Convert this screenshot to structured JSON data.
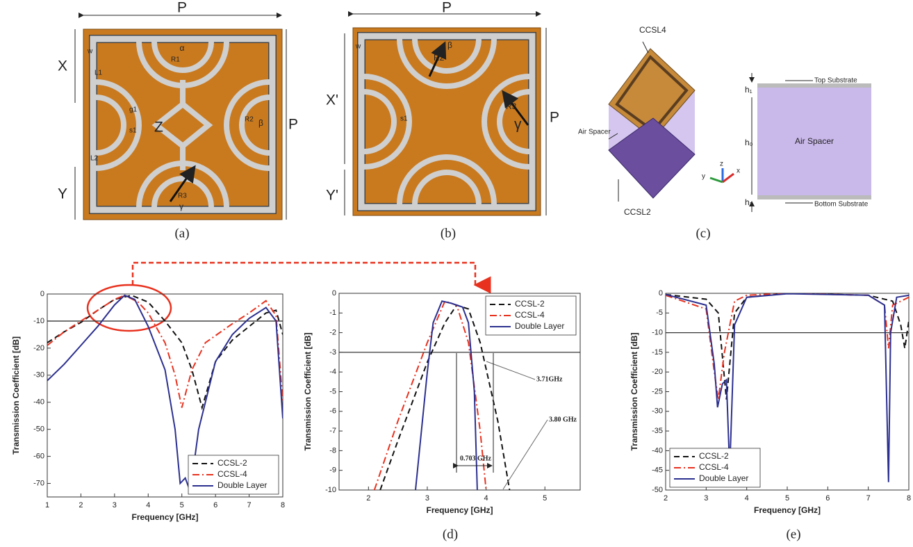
{
  "figure": {
    "panel_labels": [
      "(a)",
      "(b)",
      "(c)",
      "(d)",
      "(e)"
    ],
    "a": {
      "labels": [
        "P",
        "X",
        "Y",
        "P",
        "α",
        "R1",
        "R2",
        "β",
        "R3",
        "γ",
        "Z",
        "w",
        "L1",
        "L2",
        "g1",
        "s1"
      ]
    },
    "b": {
      "labels": [
        "P",
        "X'",
        "Y'",
        "P",
        "β",
        "R2",
        "R3",
        "γ",
        "w",
        "s1"
      ]
    },
    "c": {
      "labels": [
        "CCSL4",
        "CCSL2",
        "Air Spacer",
        "h₁",
        "h₀",
        "h₁",
        "Top Substrate",
        "Bottom Substrate",
        "Air Spacer",
        "x",
        "y",
        "z"
      ]
    }
  },
  "chart_data": [
    {
      "type": "line",
      "xlabel": "Frequency [GHz]",
      "ylabel": "Transmission Coefficient [dB]",
      "xlim": [
        1,
        8
      ],
      "ylim": [
        -75,
        0
      ],
      "xticks": [
        1,
        2,
        3,
        4,
        5,
        6,
        7,
        8
      ],
      "yticks": [
        0,
        -10,
        -20,
        -30,
        -40,
        -50,
        -60,
        -70
      ],
      "hline": -10,
      "legend": "lower right",
      "series": [
        {
          "name": "CCSL-2",
          "color": "#111111",
          "dash": "dashed",
          "x": [
            1,
            1.5,
            2,
            2.5,
            3,
            3.5,
            4,
            4.5,
            5,
            5.3,
            5.6,
            6,
            6.5,
            7,
            7.5,
            7.8,
            8
          ],
          "values": [
            -18,
            -14,
            -10.5,
            -6,
            -2,
            -0.5,
            -3,
            -10,
            -18,
            -28,
            -42,
            -25,
            -17,
            -12,
            -7,
            -6,
            -15
          ]
        },
        {
          "name": "CCSL-4",
          "color": "#e8311e",
          "dash": "dashdot",
          "x": [
            1,
            1.5,
            2,
            2.5,
            3,
            3.3,
            3.7,
            4,
            4.5,
            4.8,
            5,
            5.3,
            5.7,
            6.5,
            7,
            7.5,
            7.8,
            8
          ],
          "values": [
            -19,
            -14,
            -10,
            -6,
            -2,
            -0.5,
            -3,
            -7,
            -18,
            -30,
            -42,
            -28,
            -18,
            -11,
            -7,
            -2.5,
            -8,
            -40
          ]
        },
        {
          "name": "Double Layer",
          "color": "#2b2f8f",
          "dash": "solid",
          "x": [
            1,
            1.5,
            2,
            2.5,
            3,
            3.3,
            3.6,
            4,
            4.5,
            4.8,
            4.95,
            5.1,
            5.25,
            5.5,
            6,
            6.5,
            7,
            7.5,
            7.8,
            8
          ],
          "values": [
            -32,
            -26,
            -19,
            -12,
            -4,
            -0.5,
            -2,
            -12,
            -28,
            -50,
            -70,
            -68,
            -73,
            -50,
            -25,
            -15,
            -9,
            -5,
            -10,
            -46
          ]
        }
      ]
    },
    {
      "type": "line",
      "xlabel": "Frequency [GHz]",
      "ylabel": "Transmission Coefficient [dB]",
      "xlim": [
        1.5,
        5.6
      ],
      "ylim": [
        -10,
        0
      ],
      "xticks": [
        2,
        3,
        4,
        5
      ],
      "yticks": [
        0,
        -1,
        -2,
        -3,
        -4,
        -5,
        -6,
        -7,
        -8,
        -9,
        -10
      ],
      "hline": -3,
      "legend": "upper right",
      "annotations": [
        "3.71GHz",
        "3.80 GHz",
        "0.703 GHz"
      ],
      "series": [
        {
          "name": "CCSL-2",
          "color": "#111111",
          "dash": "dashed",
          "x": [
            2.2,
            2.5,
            3,
            3.3,
            3.5,
            3.7,
            3.9,
            4.2,
            4.4
          ],
          "values": [
            -10,
            -7.5,
            -3.5,
            -1.5,
            -0.6,
            -0.8,
            -2.5,
            -6.5,
            -10
          ]
        },
        {
          "name": "CCSL-4",
          "color": "#e8311e",
          "dash": "dashdot",
          "x": [
            2.1,
            2.5,
            3,
            3.3,
            3.5,
            3.7,
            3.9,
            4.0
          ],
          "values": [
            -10,
            -6.5,
            -2.5,
            -0.4,
            -0.6,
            -2.5,
            -7,
            -10
          ]
        },
        {
          "name": "Double Layer",
          "color": "#2b2f8f",
          "dash": "solid",
          "x": [
            2.8,
            3.0,
            3.1,
            3.25,
            3.4,
            3.5,
            3.6,
            3.7,
            3.8,
            3.85
          ],
          "values": [
            -10,
            -4,
            -1.5,
            -0.4,
            -0.5,
            -0.6,
            -0.7,
            -1.5,
            -5,
            -10
          ]
        }
      ]
    },
    {
      "type": "line",
      "xlabel": "Frequency [GHz]",
      "ylabel": "Transmission Coefficient [dB]",
      "xlim": [
        2,
        8
      ],
      "ylim": [
        -50,
        0
      ],
      "xticks": [
        2,
        3,
        4,
        5,
        6,
        7,
        8
      ],
      "yticks": [
        0,
        -5,
        -10,
        -15,
        -20,
        -25,
        -30,
        -35,
        -40,
        -45,
        -50
      ],
      "hline": -10,
      "legend": "lower left",
      "series": [
        {
          "name": "CCSL-2",
          "color": "#111111",
          "dash": "dashed",
          "x": [
            2,
            3,
            3.3,
            3.5,
            3.7,
            4,
            5,
            7,
            7.6,
            7.8,
            7.9,
            8
          ],
          "values": [
            -0.3,
            -1.5,
            -5,
            -27,
            -5,
            -1,
            0,
            -0.5,
            -2,
            -8,
            -14,
            -7
          ]
        },
        {
          "name": "CCSL-4",
          "color": "#e8311e",
          "dash": "dashdot",
          "x": [
            2,
            3,
            3.2,
            3.3,
            3.45,
            3.7,
            4,
            5,
            7,
            7.4,
            7.5,
            7.6,
            8
          ],
          "values": [
            -0.5,
            -4,
            -20,
            -27,
            -15,
            -2,
            -0.5,
            0,
            -0.5,
            -3,
            -14,
            -3,
            -1
          ]
        },
        {
          "name": "Double Layer",
          "color": "#2b2f8f",
          "dash": "solid",
          "x": [
            2,
            3,
            3.2,
            3.28,
            3.4,
            3.5,
            3.58,
            3.7,
            4,
            5,
            7,
            7.4,
            7.5,
            7.55,
            7.7,
            8
          ],
          "values": [
            -0.3,
            -3,
            -18,
            -29,
            -23,
            -22,
            -45,
            -8,
            -1,
            -0.1,
            -0.5,
            -3,
            -48,
            -10,
            -1,
            -0.5
          ]
        }
      ]
    }
  ]
}
